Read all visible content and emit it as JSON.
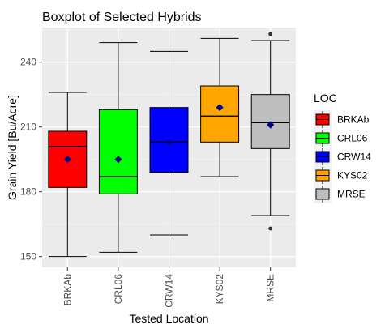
{
  "chart_data": {
    "type": "boxplot",
    "title": "Boxplot of Selected Hybrids",
    "xlabel": "Tested Location",
    "ylabel": "Grain Yield [Bu/Acre]",
    "ylim": [
      145,
      256
    ],
    "yticks": [
      150,
      180,
      210,
      240
    ],
    "grid": true,
    "legend": {
      "title": "LOC",
      "position": "right"
    },
    "categories": [
      "BRKAb",
      "CRL06",
      "CRW14",
      "KYS02",
      "MRSE"
    ],
    "colors": [
      "#ff0000",
      "#00ff00",
      "#0000ff",
      "#ffa500",
      "#bebebe"
    ],
    "mean_color": "#00008b",
    "boxes": [
      {
        "name": "BRKAb",
        "whisker_low": 150,
        "q1": 182,
        "median": 201,
        "q3": 208,
        "whisker_high": 226,
        "mean": 195,
        "outliers": []
      },
      {
        "name": "CRL06",
        "whisker_low": 152,
        "q1": 179,
        "median": 187,
        "q3": 218,
        "whisker_high": 249,
        "mean": 195,
        "outliers": []
      },
      {
        "name": "CRW14",
        "whisker_low": 160,
        "q1": 189,
        "median": 203,
        "q3": 219,
        "whisker_high": 245,
        "mean": 203,
        "outliers": []
      },
      {
        "name": "KYS02",
        "whisker_low": 187,
        "q1": 203,
        "median": 215,
        "q3": 229,
        "whisker_high": 251,
        "mean": 219,
        "outliers": []
      },
      {
        "name": "MRSE",
        "whisker_low": 169,
        "q1": 200,
        "median": 212,
        "q3": 225,
        "whisker_high": 250,
        "mean": 211,
        "outliers": [
          163,
          253
        ]
      }
    ]
  }
}
